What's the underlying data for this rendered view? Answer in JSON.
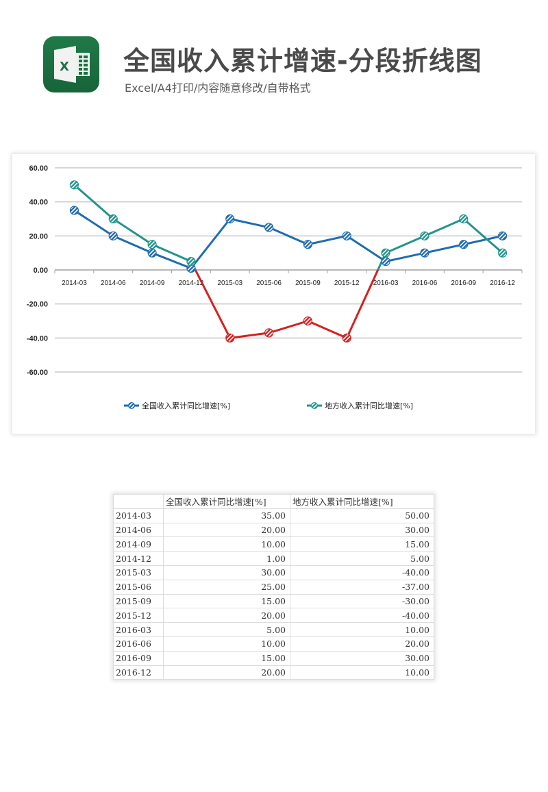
{
  "header": {
    "app_icon": "excel-icon",
    "title": "全国收入累计增速-分段折线图",
    "subtitle": "Excel/A4打印/内容随意修改/自带格式"
  },
  "colors": {
    "national": "#1f6cb0",
    "local": "#23948c",
    "negative_segment": "#d61f1f",
    "gridline": "#c8c8c8",
    "icon_green": "#1d7044"
  },
  "chart_data": {
    "type": "line",
    "title": "",
    "xlabel": "",
    "ylabel": "",
    "categories": [
      "2014-03",
      "2014-06",
      "2014-09",
      "2014-12",
      "2015-03",
      "2015-06",
      "2015-09",
      "2015-12",
      "2016-03",
      "2016-06",
      "2016-09",
      "2016-12"
    ],
    "series": [
      {
        "name": "全国收入累计同比增速[%]",
        "color": "#1f6cb0",
        "values": [
          35,
          20,
          10,
          1,
          30,
          25,
          15,
          20,
          5,
          10,
          15,
          20
        ]
      },
      {
        "name": "地方收入累计同比增速[%]",
        "color": "#23948c",
        "negative_color": "#d61f1f",
        "values": [
          50,
          30,
          15,
          5,
          -40,
          -37,
          -30,
          -40,
          10,
          20,
          30,
          10
        ]
      }
    ],
    "ylim": [
      -60,
      60
    ],
    "yticks": [
      "60.00",
      "40.00",
      "20.00",
      "0.00",
      "-20.00",
      "-40.00",
      "-60.00"
    ],
    "grid": true,
    "legend_position": "bottom",
    "annotations": "local series segment below zero drawn in red"
  },
  "legend": [
    {
      "label": "全国收入累计同比增速[%]"
    },
    {
      "label": "地方收入累计同比增速[%]"
    }
  ],
  "table": {
    "headers": [
      "",
      "全国收入累计同比增速[%]",
      "地方收入累计同比增速[%]"
    ],
    "rows": [
      [
        "2014-03",
        "35.00",
        "50.00"
      ],
      [
        "2014-06",
        "20.00",
        "30.00"
      ],
      [
        "2014-09",
        "10.00",
        "15.00"
      ],
      [
        "2014-12",
        "1.00",
        "5.00"
      ],
      [
        "2015-03",
        "30.00",
        "-40.00"
      ],
      [
        "2015-06",
        "25.00",
        "-37.00"
      ],
      [
        "2015-09",
        "15.00",
        "-30.00"
      ],
      [
        "2015-12",
        "20.00",
        "-40.00"
      ],
      [
        "2016-03",
        "5.00",
        "10.00"
      ],
      [
        "2016-06",
        "10.00",
        "20.00"
      ],
      [
        "2016-09",
        "15.00",
        "30.00"
      ],
      [
        "2016-12",
        "20.00",
        "10.00"
      ]
    ]
  }
}
